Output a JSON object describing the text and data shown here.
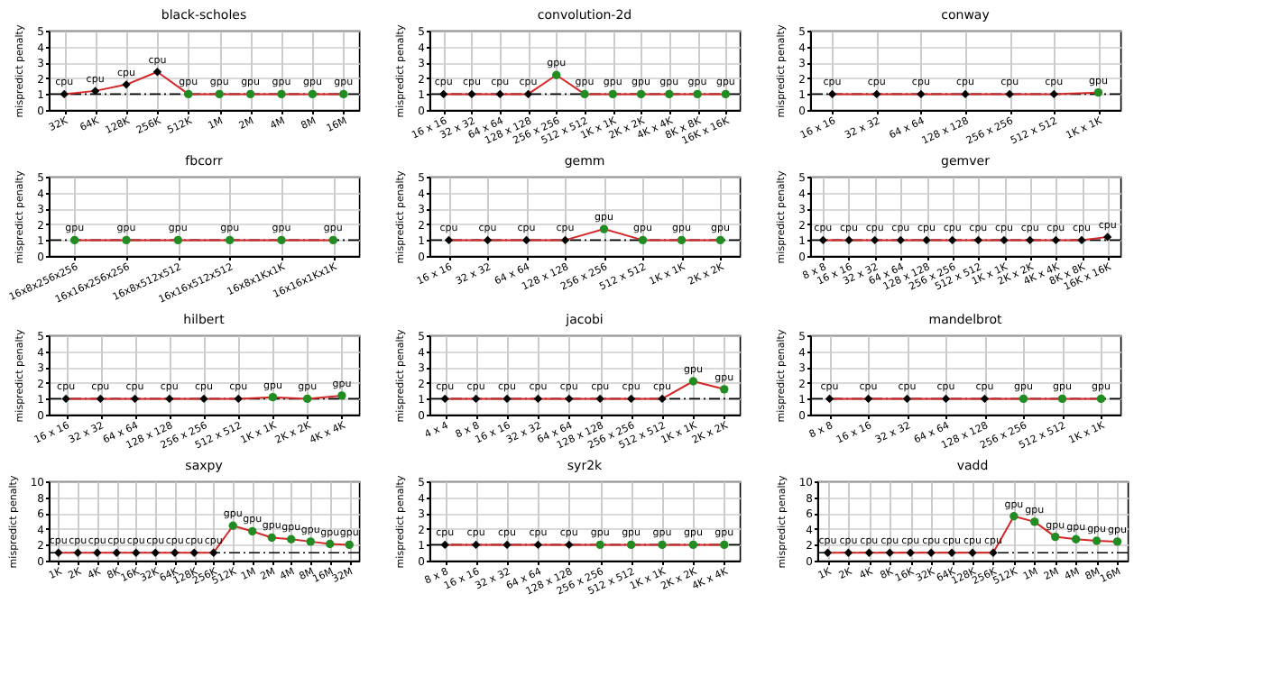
{
  "chart_data": [
    {
      "type": "line",
      "title": "black-scholes",
      "ylabel": "mispredict penalty",
      "categories": [
        "32K",
        "64K",
        "128K",
        "256K",
        "512K",
        "1M",
        "2M",
        "4M",
        "8M",
        "16M"
      ],
      "ylim": [
        0,
        5
      ],
      "yticks": [
        0,
        1,
        2,
        3,
        4,
        5
      ],
      "grid": true,
      "legend": false,
      "series": [
        {
          "type": "line",
          "color": "#d62728",
          "marker": "none",
          "line_style": "solid",
          "values": [
            1,
            1.2,
            1.6,
            2.4,
            1,
            1,
            1,
            1,
            1,
            1
          ]
        },
        {
          "type": "scatter",
          "color": "#000000",
          "marker": "diamond",
          "values": [
            1,
            1.2,
            1.6,
            2.4,
            null,
            null,
            null,
            null,
            null,
            null
          ],
          "value_labels": [
            "cpu",
            "cpu",
            "cpu",
            "cpu",
            null,
            null,
            null,
            null,
            null,
            null
          ]
        },
        {
          "type": "scatter",
          "color": "#228b22",
          "marker": "circle",
          "values": [
            null,
            null,
            null,
            null,
            1,
            1,
            1,
            1,
            1,
            1
          ],
          "value_labels": [
            null,
            null,
            null,
            null,
            "gpu",
            "gpu",
            "gpu",
            "gpu",
            "gpu",
            "gpu"
          ]
        }
      ],
      "ref_lines": [
        {
          "axis": "y",
          "value": 1,
          "color": "#000000",
          "line_style": "dashed"
        }
      ]
    },
    {
      "type": "line",
      "title": "convolution-2d",
      "ylabel": "mispredict penalty",
      "categories": [
        "16 x 16",
        "32 x 32",
        "64 x 64",
        "128 x 128",
        "256 x 256",
        "512 x 512",
        "1K x 1K",
        "2K x 2K",
        "4K x 4K",
        "8K x 8K",
        "16K x 16K"
      ],
      "ylim": [
        0,
        5
      ],
      "yticks": [
        0,
        1,
        2,
        3,
        4,
        5
      ],
      "grid": true,
      "legend": false,
      "series": [
        {
          "type": "line",
          "color": "#d62728",
          "marker": "none",
          "values": [
            1,
            1,
            1,
            1,
            2.2,
            1,
            1,
            1,
            1,
            1,
            1
          ]
        },
        {
          "type": "scatter",
          "color": "#000000",
          "marker": "diamond",
          "values": [
            1,
            1,
            1,
            1,
            null,
            null,
            null,
            null,
            null,
            null,
            null
          ],
          "value_labels": [
            "cpu",
            "cpu",
            "cpu",
            "cpu",
            null,
            null,
            null,
            null,
            null,
            null,
            null
          ]
        },
        {
          "type": "scatter",
          "color": "#228b22",
          "marker": "circle",
          "values": [
            null,
            null,
            null,
            null,
            2.2,
            1,
            1,
            1,
            1,
            1,
            1
          ],
          "value_labels": [
            null,
            null,
            null,
            null,
            "gpu",
            "gpu",
            "gpu",
            "gpu",
            "gpu",
            "gpu",
            "gpu"
          ]
        }
      ],
      "ref_lines": [
        {
          "axis": "y",
          "value": 1,
          "color": "#000000",
          "line_style": "dashed"
        }
      ]
    },
    {
      "type": "line",
      "title": "conway",
      "ylabel": "mispredict penalty",
      "categories": [
        "16 x 16",
        "32 x 32",
        "64 x 64",
        "128 x 128",
        "256 x 256",
        "512 x 512",
        "1K x 1K"
      ],
      "ylim": [
        0,
        5
      ],
      "yticks": [
        0,
        1,
        2,
        3,
        4,
        5
      ],
      "grid": true,
      "legend": false,
      "series": [
        {
          "type": "line",
          "color": "#d62728",
          "marker": "none",
          "values": [
            1,
            1,
            1,
            1,
            1,
            1,
            1.1
          ]
        },
        {
          "type": "scatter",
          "color": "#000000",
          "marker": "diamond",
          "values": [
            1,
            1,
            1,
            1,
            1,
            1,
            null
          ],
          "value_labels": [
            "cpu",
            "cpu",
            "cpu",
            "cpu",
            "cpu",
            "cpu",
            null
          ]
        },
        {
          "type": "scatter",
          "color": "#228b22",
          "marker": "circle",
          "values": [
            null,
            null,
            null,
            null,
            null,
            null,
            1.1
          ],
          "value_labels": [
            null,
            null,
            null,
            null,
            null,
            null,
            "gpu"
          ]
        }
      ],
      "ref_lines": [
        {
          "axis": "y",
          "value": 1,
          "color": "#000000",
          "line_style": "dashed"
        }
      ]
    },
    {
      "type": "line",
      "title": "fbcorr",
      "ylabel": "mispredict penalty",
      "categories": [
        "16x8x256x256",
        "16x16x256x256",
        "16x8x512x512",
        "16x16x512x512",
        "16x8x1Kx1K",
        "16x16x1Kx1K"
      ],
      "ylim": [
        0,
        5
      ],
      "yticks": [
        0,
        1,
        2,
        3,
        4,
        5
      ],
      "grid": true,
      "legend": false,
      "series": [
        {
          "type": "line",
          "color": "#d62728",
          "marker": "none",
          "values": [
            1,
            1,
            1,
            1,
            1,
            1
          ]
        },
        {
          "type": "scatter",
          "color": "#228b22",
          "marker": "circle",
          "values": [
            1,
            1,
            1,
            1,
            1,
            1
          ],
          "value_labels": [
            "gpu",
            "gpu",
            "gpu",
            "gpu",
            "gpu",
            "gpu"
          ]
        }
      ],
      "ref_lines": [
        {
          "axis": "y",
          "value": 1,
          "color": "#000000",
          "line_style": "dashed"
        }
      ]
    },
    {
      "type": "line",
      "title": "gemm",
      "ylabel": "mispredict penalty",
      "categories": [
        "16 x 16",
        "32 x 32",
        "64 x 64",
        "128 x 128",
        "256 x 256",
        "512 x 512",
        "1K x 1K",
        "2K x 2K"
      ],
      "ylim": [
        0,
        5
      ],
      "yticks": [
        0,
        1,
        2,
        3,
        4,
        5
      ],
      "grid": true,
      "legend": false,
      "series": [
        {
          "type": "line",
          "color": "#d62728",
          "marker": "none",
          "values": [
            1,
            1,
            1,
            1,
            1.7,
            1,
            1,
            1
          ]
        },
        {
          "type": "scatter",
          "color": "#000000",
          "marker": "diamond",
          "values": [
            1,
            1,
            1,
            1,
            null,
            null,
            null,
            null
          ],
          "value_labels": [
            "cpu",
            "cpu",
            "cpu",
            "cpu",
            null,
            null,
            null,
            null
          ]
        },
        {
          "type": "scatter",
          "color": "#228b22",
          "marker": "circle",
          "values": [
            null,
            null,
            null,
            null,
            1.7,
            1,
            1,
            1
          ],
          "value_labels": [
            null,
            null,
            null,
            null,
            "gpu",
            "gpu",
            "gpu",
            "gpu"
          ]
        }
      ],
      "ref_lines": [
        {
          "axis": "y",
          "value": 1,
          "color": "#000000",
          "line_style": "dashed"
        }
      ]
    },
    {
      "type": "line",
      "title": "gemver",
      "ylabel": "mispredict penalty",
      "categories": [
        "8 x 8",
        "16 x 16",
        "32 x 32",
        "64 x 64",
        "128 x 128",
        "256 x 256",
        "512 x 512",
        "1K x 1K",
        "2K x 2K",
        "4K x 4K",
        "8K x 8K",
        "16K x 16K"
      ],
      "ylim": [
        0,
        5
      ],
      "yticks": [
        0,
        1,
        2,
        3,
        4,
        5
      ],
      "grid": true,
      "legend": false,
      "series": [
        {
          "type": "line",
          "color": "#d62728",
          "marker": "none",
          "values": [
            1,
            1,
            1,
            1,
            1,
            1,
            1,
            1,
            1,
            1,
            1,
            1.2
          ]
        },
        {
          "type": "scatter",
          "color": "#000000",
          "marker": "diamond",
          "values": [
            1,
            1,
            1,
            1,
            1,
            1,
            1,
            1,
            1,
            1,
            1,
            1.2
          ],
          "value_labels": [
            "cpu",
            "cpu",
            "cpu",
            "cpu",
            "cpu",
            "cpu",
            "cpu",
            "cpu",
            "cpu",
            "cpu",
            "cpu",
            "cpu"
          ]
        }
      ],
      "ref_lines": [
        {
          "axis": "y",
          "value": 1,
          "color": "#000000",
          "line_style": "dashed"
        }
      ]
    },
    {
      "type": "line",
      "title": "hilbert",
      "ylabel": "mispredict penalty",
      "categories": [
        "16 x 16",
        "32 x 32",
        "64 x 64",
        "128 x 128",
        "256 x 256",
        "512 x 512",
        "1K x 1K",
        "2K x 2K",
        "4K x 4K"
      ],
      "ylim": [
        0,
        5
      ],
      "yticks": [
        0,
        1,
        2,
        3,
        4,
        5
      ],
      "grid": true,
      "legend": false,
      "series": [
        {
          "type": "line",
          "color": "#d62728",
          "marker": "none",
          "values": [
            1,
            1,
            1,
            1,
            1,
            1,
            1.1,
            1,
            1.2
          ]
        },
        {
          "type": "scatter",
          "color": "#000000",
          "marker": "diamond",
          "values": [
            1,
            1,
            1,
            1,
            1,
            1,
            null,
            null,
            null
          ],
          "value_labels": [
            "cpu",
            "cpu",
            "cpu",
            "cpu",
            "cpu",
            "cpu",
            null,
            null,
            null
          ]
        },
        {
          "type": "scatter",
          "color": "#228b22",
          "marker": "circle",
          "values": [
            null,
            null,
            null,
            null,
            null,
            null,
            1.1,
            1,
            1.2
          ],
          "value_labels": [
            null,
            null,
            null,
            null,
            null,
            null,
            "gpu",
            "gpu",
            "gpu"
          ]
        }
      ],
      "ref_lines": [
        {
          "axis": "y",
          "value": 1,
          "color": "#000000",
          "line_style": "dashed"
        }
      ]
    },
    {
      "type": "line",
      "title": "jacobi",
      "ylabel": "mispredict penalty",
      "categories": [
        "4 x 4",
        "8 x 8",
        "16 x 16",
        "32 x 32",
        "64 x 64",
        "128 x 128",
        "256 x 256",
        "512 x 512",
        "1K x 1K",
        "2K x 2K"
      ],
      "ylim": [
        0,
        5
      ],
      "yticks": [
        0,
        1,
        2,
        3,
        4,
        5
      ],
      "grid": true,
      "legend": false,
      "series": [
        {
          "type": "line",
          "color": "#d62728",
          "marker": "none",
          "values": [
            1,
            1,
            1,
            1,
            1,
            1,
            1,
            1,
            2.1,
            1.6
          ]
        },
        {
          "type": "scatter",
          "color": "#000000",
          "marker": "diamond",
          "values": [
            1,
            1,
            1,
            1,
            1,
            1,
            1,
            1,
            null,
            null
          ],
          "value_labels": [
            "cpu",
            "cpu",
            "cpu",
            "cpu",
            "cpu",
            "cpu",
            "cpu",
            "cpu",
            null,
            null
          ]
        },
        {
          "type": "scatter",
          "color": "#228b22",
          "marker": "circle",
          "values": [
            null,
            null,
            null,
            null,
            null,
            null,
            null,
            null,
            2.1,
            1.6
          ],
          "value_labels": [
            null,
            null,
            null,
            null,
            null,
            null,
            null,
            null,
            "gpu",
            "gpu"
          ]
        }
      ],
      "ref_lines": [
        {
          "axis": "y",
          "value": 1,
          "color": "#000000",
          "line_style": "dashed"
        }
      ]
    },
    {
      "type": "line",
      "title": "mandelbrot",
      "ylabel": "mispredict penalty",
      "categories": [
        "8 x 8",
        "16 x 16",
        "32 x 32",
        "64 x 64",
        "128 x 128",
        "256 x 256",
        "512 x 512",
        "1K x 1K"
      ],
      "ylim": [
        0,
        5
      ],
      "yticks": [
        0,
        1,
        2,
        3,
        4,
        5
      ],
      "grid": true,
      "legend": false,
      "series": [
        {
          "type": "line",
          "color": "#d62728",
          "marker": "none",
          "values": [
            1,
            1,
            1,
            1,
            1,
            1,
            1,
            1
          ]
        },
        {
          "type": "scatter",
          "color": "#000000",
          "marker": "diamond",
          "values": [
            1,
            1,
            1,
            1,
            1,
            null,
            null,
            null
          ],
          "value_labels": [
            "cpu",
            "cpu",
            "cpu",
            "cpu",
            "cpu",
            null,
            null,
            null
          ]
        },
        {
          "type": "scatter",
          "color": "#228b22",
          "marker": "circle",
          "values": [
            null,
            null,
            null,
            null,
            null,
            1,
            1,
            1
          ],
          "value_labels": [
            null,
            null,
            null,
            null,
            null,
            "gpu",
            "gpu",
            "gpu"
          ]
        }
      ],
      "ref_lines": [
        {
          "axis": "y",
          "value": 1,
          "color": "#000000",
          "line_style": "dashed"
        }
      ]
    },
    {
      "type": "line",
      "title": "saxpy",
      "ylabel": "mispredict penalty",
      "categories": [
        "1K",
        "2K",
        "4K",
        "8K",
        "16K",
        "32K",
        "64K",
        "128K",
        "256K",
        "512K",
        "1M",
        "2M",
        "4M",
        "8M",
        "16M",
        "32M"
      ],
      "ylim": [
        0,
        10
      ],
      "yticks": [
        0,
        2,
        4,
        6,
        8,
        10
      ],
      "grid": true,
      "legend": false,
      "series": [
        {
          "type": "line",
          "color": "#d62728",
          "marker": "none",
          "values": [
            1,
            1,
            1,
            1,
            1,
            1,
            1,
            1,
            1,
            4.4,
            3.7,
            2.9,
            2.7,
            2.4,
            2.1,
            2.0
          ]
        },
        {
          "type": "scatter",
          "color": "#000000",
          "marker": "diamond",
          "values": [
            1,
            1,
            1,
            1,
            1,
            1,
            1,
            1,
            1,
            null,
            null,
            null,
            null,
            null,
            null,
            null
          ],
          "value_labels": [
            "cpu",
            "cpu",
            "cpu",
            "cpu",
            "cpu",
            "cpu",
            "cpu",
            "cpu",
            "cpu",
            null,
            null,
            null,
            null,
            null,
            null,
            null
          ]
        },
        {
          "type": "scatter",
          "color": "#228b22",
          "marker": "circle",
          "values": [
            null,
            null,
            null,
            null,
            null,
            null,
            null,
            null,
            null,
            4.4,
            3.7,
            2.9,
            2.7,
            2.4,
            2.1,
            2.0
          ],
          "value_labels": [
            null,
            null,
            null,
            null,
            null,
            null,
            null,
            null,
            null,
            "gpu",
            "gpu",
            "gpu",
            "gpu",
            "gpu",
            "gpu",
            "gpu"
          ]
        }
      ],
      "ref_lines": [
        {
          "axis": "y",
          "value": 1,
          "color": "#000000",
          "line_style": "dashed"
        }
      ]
    },
    {
      "type": "line",
      "title": "syr2k",
      "ylabel": "mispredict penalty",
      "categories": [
        "8 x 8",
        "16 x 16",
        "32 x 32",
        "64 x 64",
        "128 x 128",
        "256 x 256",
        "512 x 512",
        "1K x 1K",
        "2K x 2K",
        "4K x 4K"
      ],
      "ylim": [
        0,
        5
      ],
      "yticks": [
        0,
        1,
        2,
        3,
        4,
        5
      ],
      "grid": true,
      "legend": false,
      "series": [
        {
          "type": "line",
          "color": "#d62728",
          "marker": "none",
          "values": [
            1,
            1,
            1,
            1,
            1,
            1,
            1,
            1,
            1,
            1
          ]
        },
        {
          "type": "scatter",
          "color": "#000000",
          "marker": "diamond",
          "values": [
            1,
            1,
            1,
            1,
            1,
            null,
            null,
            null,
            null,
            null
          ],
          "value_labels": [
            "cpu",
            "cpu",
            "cpu",
            "cpu",
            "cpu",
            null,
            null,
            null,
            null,
            null
          ]
        },
        {
          "type": "scatter",
          "color": "#228b22",
          "marker": "circle",
          "values": [
            null,
            null,
            null,
            null,
            null,
            1,
            1,
            1,
            1,
            1
          ],
          "value_labels": [
            null,
            null,
            null,
            null,
            null,
            "gpu",
            "gpu",
            "gpu",
            "gpu",
            "gpu"
          ]
        }
      ],
      "ref_lines": [
        {
          "axis": "y",
          "value": 1,
          "color": "#000000",
          "line_style": "dashed"
        }
      ]
    },
    {
      "type": "line",
      "title": "vadd",
      "ylabel": "mispredict penalty",
      "categories": [
        "1K",
        "2K",
        "4K",
        "8K",
        "16K",
        "32K",
        "64K",
        "128K",
        "256K",
        "512K",
        "1M",
        "2M",
        "4M",
        "8M",
        "16M"
      ],
      "ylim": [
        0,
        10
      ],
      "yticks": [
        0,
        2,
        4,
        6,
        8,
        10
      ],
      "grid": true,
      "legend": false,
      "series": [
        {
          "type": "line",
          "color": "#d62728",
          "marker": "none",
          "values": [
            1,
            1,
            1,
            1,
            1,
            1,
            1,
            1,
            1,
            5.6,
            4.9,
            3.0,
            2.7,
            2.5,
            2.4
          ]
        },
        {
          "type": "scatter",
          "color": "#000000",
          "marker": "diamond",
          "values": [
            1,
            1,
            1,
            1,
            1,
            1,
            1,
            1,
            1,
            null,
            null,
            null,
            null,
            null,
            null
          ],
          "value_labels": [
            "cpu",
            "cpu",
            "cpu",
            "cpu",
            "cpu",
            "cpu",
            "cpu",
            "cpu",
            "cpu",
            null,
            null,
            null,
            null,
            null,
            null
          ]
        },
        {
          "type": "scatter",
          "color": "#228b22",
          "marker": "circle",
          "values": [
            null,
            null,
            null,
            null,
            null,
            null,
            null,
            null,
            null,
            5.6,
            4.9,
            3.0,
            2.7,
            2.5,
            2.4
          ],
          "value_labels": [
            null,
            null,
            null,
            null,
            null,
            null,
            null,
            null,
            null,
            "gpu",
            "gpu",
            "gpu",
            "gpu",
            "gpu",
            "gpu"
          ]
        }
      ],
      "ref_lines": [
        {
          "axis": "y",
          "value": 1,
          "color": "#000000",
          "line_style": "dashed"
        }
      ]
    }
  ]
}
